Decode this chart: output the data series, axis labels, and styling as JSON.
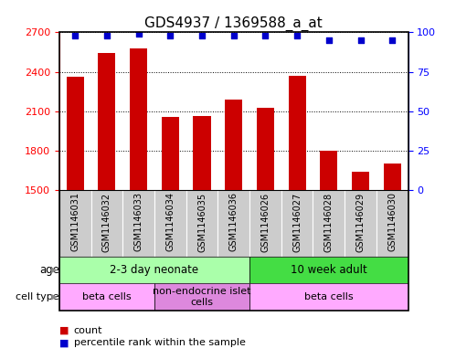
{
  "title": "GDS4937 / 1369588_a_at",
  "samples": [
    "GSM1146031",
    "GSM1146032",
    "GSM1146033",
    "GSM1146034",
    "GSM1146035",
    "GSM1146036",
    "GSM1146026",
    "GSM1146027",
    "GSM1146028",
    "GSM1146029",
    "GSM1146030"
  ],
  "counts": [
    2360,
    2545,
    2580,
    2060,
    2065,
    2190,
    2130,
    2370,
    1800,
    1640,
    1700
  ],
  "percentiles": [
    98,
    98,
    99,
    98,
    98,
    98,
    98,
    98,
    95,
    95,
    95
  ],
  "ylim_left": [
    1500,
    2700
  ],
  "ylim_right": [
    0,
    100
  ],
  "yticks_left": [
    1500,
    1800,
    2100,
    2400,
    2700
  ],
  "yticks_right": [
    0,
    25,
    50,
    75,
    100
  ],
  "bar_color": "#cc0000",
  "dot_color": "#0000cc",
  "age_groups": [
    {
      "label": "2-3 day neonate",
      "start": 0,
      "end": 6,
      "color": "#aaffaa"
    },
    {
      "label": "10 week adult",
      "start": 6,
      "end": 11,
      "color": "#44dd44"
    }
  ],
  "cell_type_groups": [
    {
      "label": "beta cells",
      "start": 0,
      "end": 3,
      "color": "#ffaaff"
    },
    {
      "label": "non-endocrine islet\ncells",
      "start": 3,
      "end": 6,
      "color": "#dd88dd"
    },
    {
      "label": "beta cells",
      "start": 6,
      "end": 11,
      "color": "#ffaaff"
    }
  ],
  "legend_bar_color": "#cc0000",
  "legend_dot_color": "#0000cc",
  "sample_bg_color": "#cccccc",
  "title_fontsize": 11,
  "tick_label_fontsize": 7,
  "border_color": "#000000"
}
